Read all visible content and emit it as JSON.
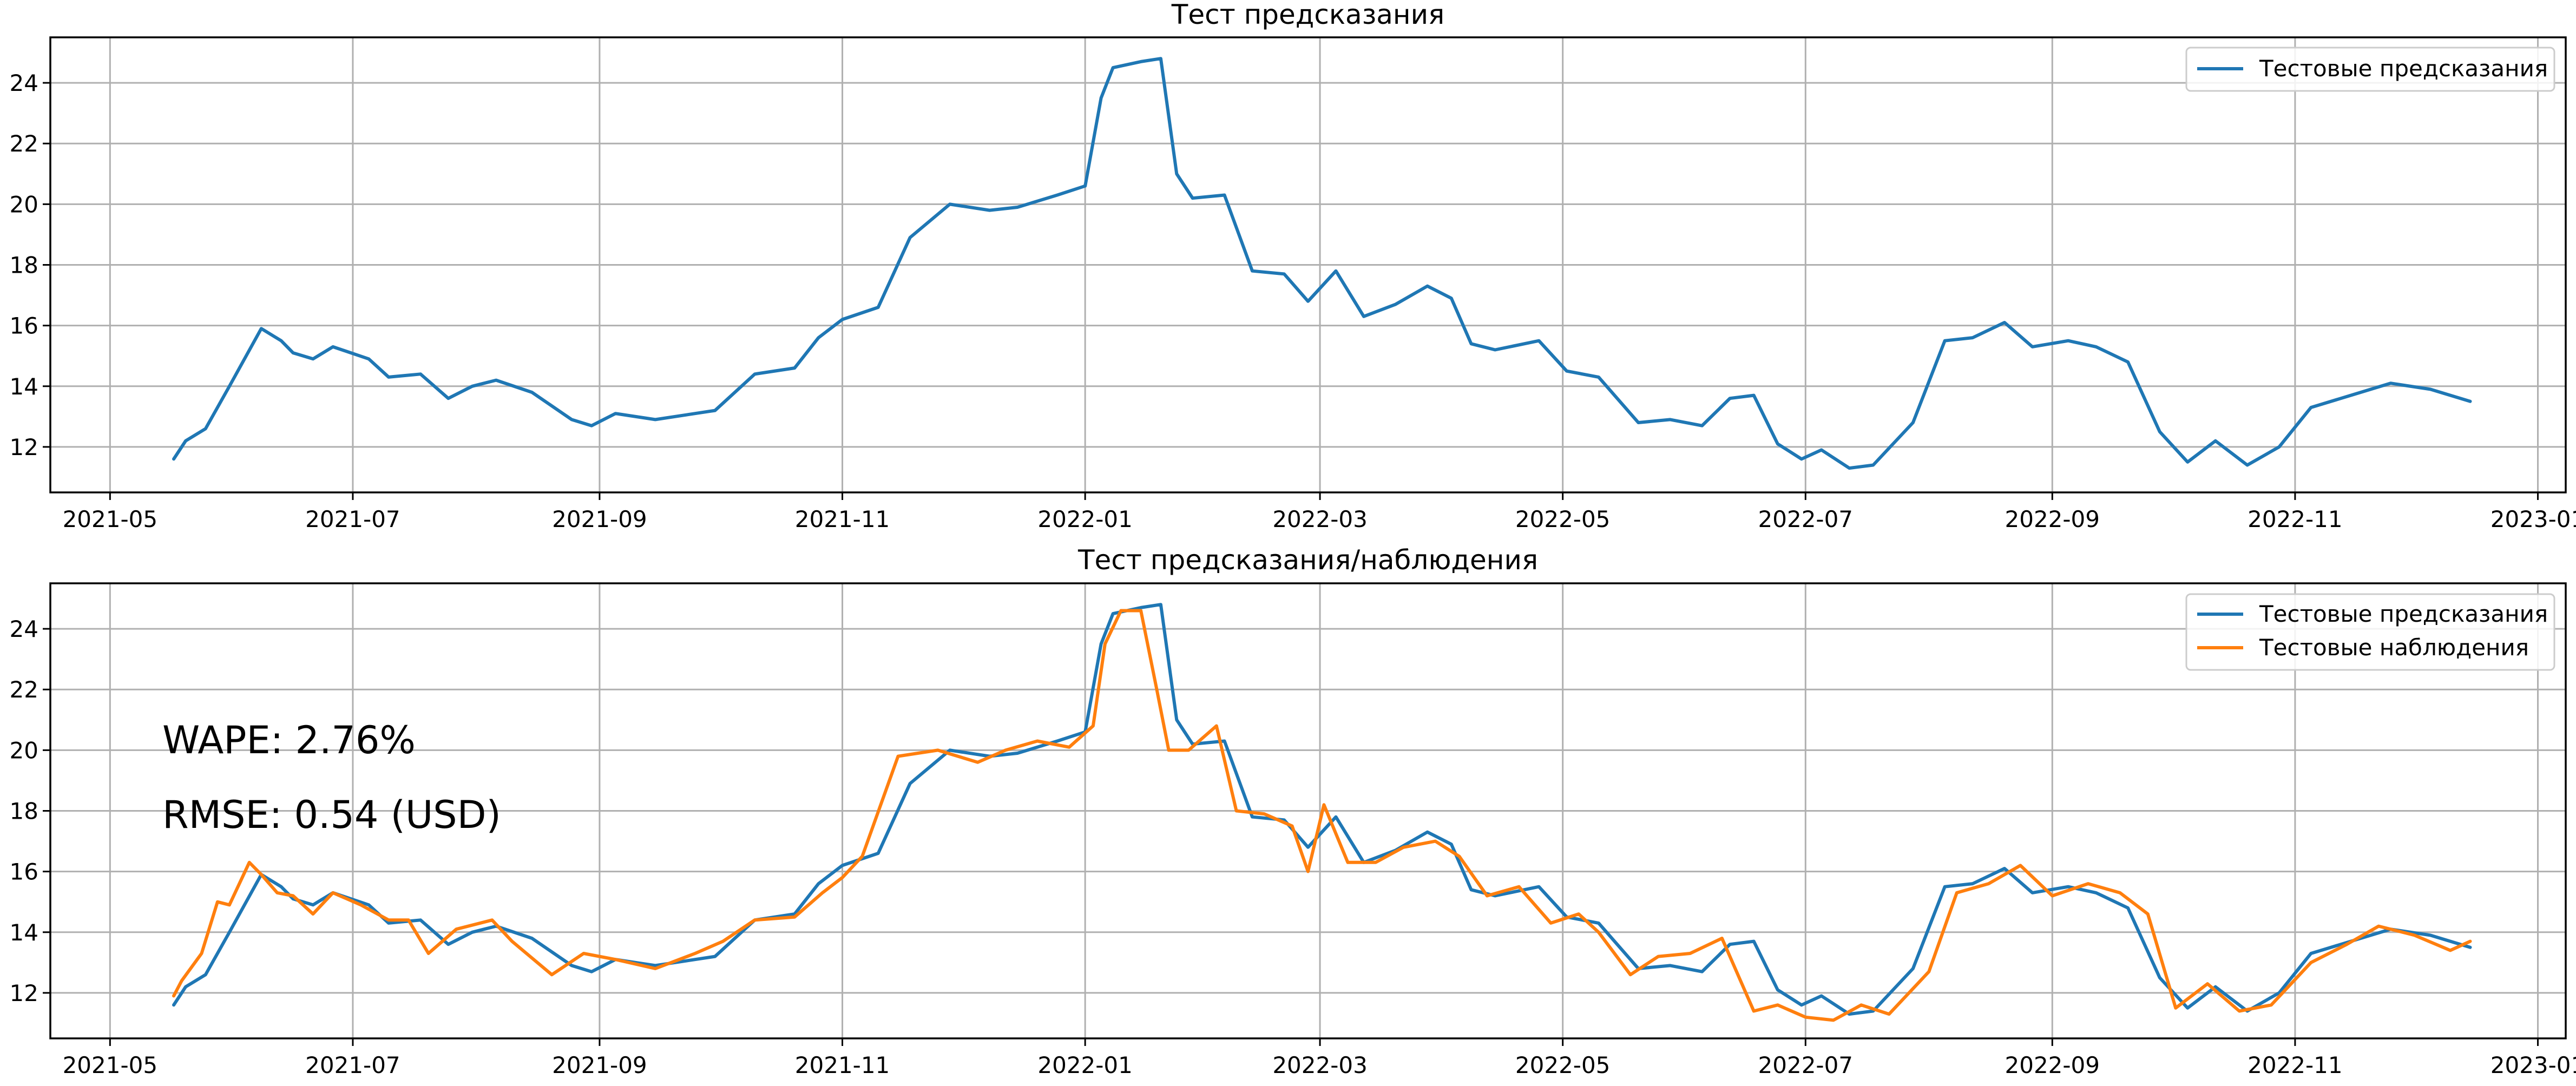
{
  "colors": {
    "predicted": "#1f77b4",
    "observed": "#ff7f0e",
    "grid": "#b0b0b0"
  },
  "chart_data": [
    {
      "type": "line",
      "title": "Тест предсказания",
      "xlabel": "",
      "ylabel": "",
      "x_ticks": [
        "2021-05",
        "2021-07",
        "2021-09",
        "2021-11",
        "2022-01",
        "2022-03",
        "2022-05",
        "2022-07",
        "2022-09",
        "2022-11",
        "2023-01"
      ],
      "xlim": [
        "2021-04-16",
        "2023-01-08"
      ],
      "y_ticks": [
        12,
        14,
        16,
        18,
        20,
        22,
        24
      ],
      "ylim": [
        10.5,
        25.5
      ],
      "grid": true,
      "legend_position": "top-right",
      "series": [
        {
          "name": "Тестовые предсказания",
          "color": "#1f77b4",
          "x": [
            "2021-05-17",
            "2021-05-20",
            "2021-05-25",
            "2021-05-31",
            "2021-06-08",
            "2021-06-13",
            "2021-06-16",
            "2021-06-21",
            "2021-06-26",
            "2021-07-05",
            "2021-07-10",
            "2021-07-18",
            "2021-07-25",
            "2021-07-31",
            "2021-08-06",
            "2021-08-15",
            "2021-08-25",
            "2021-08-30",
            "2021-09-05",
            "2021-09-15",
            "2021-09-25",
            "2021-09-30",
            "2021-10-10",
            "2021-10-20",
            "2021-10-26",
            "2021-11-01",
            "2021-11-10",
            "2021-11-18",
            "2021-11-28",
            "2021-12-08",
            "2021-12-15",
            "2021-12-25",
            "2022-01-01",
            "2022-01-05",
            "2022-01-08",
            "2022-01-15",
            "2022-01-20",
            "2022-01-24",
            "2022-01-28",
            "2022-02-05",
            "2022-02-12",
            "2022-02-20",
            "2022-02-26",
            "2022-03-05",
            "2022-03-12",
            "2022-03-20",
            "2022-03-28",
            "2022-04-03",
            "2022-04-08",
            "2022-04-14",
            "2022-04-25",
            "2022-05-02",
            "2022-05-10",
            "2022-05-20",
            "2022-05-28",
            "2022-06-05",
            "2022-06-12",
            "2022-06-18",
            "2022-06-24",
            "2022-06-30",
            "2022-07-05",
            "2022-07-12",
            "2022-07-18",
            "2022-07-28",
            "2022-08-05",
            "2022-08-12",
            "2022-08-20",
            "2022-08-27",
            "2022-09-05",
            "2022-09-12",
            "2022-09-20",
            "2022-09-28",
            "2022-10-05",
            "2022-10-12",
            "2022-10-20",
            "2022-10-28",
            "2022-11-05",
            "2022-11-15",
            "2022-11-25",
            "2022-12-05",
            "2022-12-15"
          ],
          "values": [
            11.6,
            12.2,
            12.6,
            14.0,
            15.9,
            15.5,
            15.1,
            14.9,
            15.3,
            14.9,
            14.3,
            14.4,
            13.6,
            14.0,
            14.2,
            13.8,
            12.9,
            12.7,
            13.1,
            12.9,
            13.1,
            13.2,
            14.4,
            14.6,
            15.6,
            16.2,
            16.6,
            18.9,
            20.0,
            19.8,
            19.9,
            20.3,
            20.6,
            23.5,
            24.5,
            24.7,
            24.8,
            21.0,
            20.2,
            20.3,
            17.8,
            17.7,
            16.8,
            17.8,
            16.3,
            16.7,
            17.3,
            16.9,
            15.4,
            15.2,
            15.5,
            14.5,
            14.3,
            12.8,
            12.9,
            12.7,
            13.6,
            13.7,
            12.1,
            11.6,
            11.9,
            11.3,
            11.4,
            12.8,
            15.5,
            15.6,
            16.1,
            15.3,
            15.5,
            15.3,
            14.8,
            12.5,
            11.5,
            12.2,
            11.4,
            12.0,
            13.3,
            13.7,
            14.1,
            13.9,
            13.5
          ]
        }
      ]
    },
    {
      "type": "line",
      "title": "Тест предсказания/наблюдения",
      "xlabel": "",
      "ylabel": "",
      "x_ticks": [
        "2021-05",
        "2021-07",
        "2021-09",
        "2021-11",
        "2022-01",
        "2022-03",
        "2022-05",
        "2022-07",
        "2022-09",
        "2022-11",
        "2023-01"
      ],
      "xlim": [
        "2021-04-16",
        "2023-01-08"
      ],
      "y_ticks": [
        12,
        14,
        16,
        18,
        20,
        22,
        24
      ],
      "ylim": [
        10.5,
        25.5
      ],
      "grid": true,
      "legend_position": "top-right",
      "annotations": [
        "WAPE: 2.76%",
        "RMSE: 0.54 (USD)"
      ],
      "series": [
        {
          "name": "Тестовые предсказания",
          "color": "#1f77b4",
          "x": [
            "2021-05-17",
            "2021-05-20",
            "2021-05-25",
            "2021-05-31",
            "2021-06-08",
            "2021-06-13",
            "2021-06-16",
            "2021-06-21",
            "2021-06-26",
            "2021-07-05",
            "2021-07-10",
            "2021-07-18",
            "2021-07-25",
            "2021-07-31",
            "2021-08-06",
            "2021-08-15",
            "2021-08-25",
            "2021-08-30",
            "2021-09-05",
            "2021-09-15",
            "2021-09-25",
            "2021-09-30",
            "2021-10-10",
            "2021-10-20",
            "2021-10-26",
            "2021-11-01",
            "2021-11-10",
            "2021-11-18",
            "2021-11-28",
            "2021-12-08",
            "2021-12-15",
            "2021-12-25",
            "2022-01-01",
            "2022-01-05",
            "2022-01-08",
            "2022-01-15",
            "2022-01-20",
            "2022-01-24",
            "2022-01-28",
            "2022-02-05",
            "2022-02-12",
            "2022-02-20",
            "2022-02-26",
            "2022-03-05",
            "2022-03-12",
            "2022-03-20",
            "2022-03-28",
            "2022-04-03",
            "2022-04-08",
            "2022-04-14",
            "2022-04-25",
            "2022-05-02",
            "2022-05-10",
            "2022-05-20",
            "2022-05-28",
            "2022-06-05",
            "2022-06-12",
            "2022-06-18",
            "2022-06-24",
            "2022-06-30",
            "2022-07-05",
            "2022-07-12",
            "2022-07-18",
            "2022-07-28",
            "2022-08-05",
            "2022-08-12",
            "2022-08-20",
            "2022-08-27",
            "2022-09-05",
            "2022-09-12",
            "2022-09-20",
            "2022-09-28",
            "2022-10-05",
            "2022-10-12",
            "2022-10-20",
            "2022-10-28",
            "2022-11-05",
            "2022-11-15",
            "2022-11-25",
            "2022-12-05",
            "2022-12-15"
          ],
          "values": [
            11.6,
            12.2,
            12.6,
            14.0,
            15.9,
            15.5,
            15.1,
            14.9,
            15.3,
            14.9,
            14.3,
            14.4,
            13.6,
            14.0,
            14.2,
            13.8,
            12.9,
            12.7,
            13.1,
            12.9,
            13.1,
            13.2,
            14.4,
            14.6,
            15.6,
            16.2,
            16.6,
            18.9,
            20.0,
            19.8,
            19.9,
            20.3,
            20.6,
            23.5,
            24.5,
            24.7,
            24.8,
            21.0,
            20.2,
            20.3,
            17.8,
            17.7,
            16.8,
            17.8,
            16.3,
            16.7,
            17.3,
            16.9,
            15.4,
            15.2,
            15.5,
            14.5,
            14.3,
            12.8,
            12.9,
            12.7,
            13.6,
            13.7,
            12.1,
            11.6,
            11.9,
            11.3,
            11.4,
            12.8,
            15.5,
            15.6,
            16.1,
            15.3,
            15.5,
            15.3,
            14.8,
            12.5,
            11.5,
            12.2,
            11.4,
            12.0,
            13.3,
            13.7,
            14.1,
            13.9,
            13.5
          ]
        },
        {
          "name": "Тестовые наблюдения",
          "color": "#ff7f0e",
          "x": [
            "2021-05-17",
            "2021-05-19",
            "2021-05-24",
            "2021-05-28",
            "2021-05-31",
            "2021-06-05",
            "2021-06-08",
            "2021-06-12",
            "2021-06-16",
            "2021-06-21",
            "2021-06-26",
            "2021-07-03",
            "2021-07-10",
            "2021-07-15",
            "2021-07-20",
            "2021-07-27",
            "2021-08-05",
            "2021-08-10",
            "2021-08-20",
            "2021-08-28",
            "2021-09-05",
            "2021-09-15",
            "2021-09-25",
            "2021-10-02",
            "2021-10-10",
            "2021-10-20",
            "2021-10-27",
            "2021-11-01",
            "2021-11-06",
            "2021-11-15",
            "2021-11-25",
            "2021-12-05",
            "2021-12-12",
            "2021-12-20",
            "2021-12-28",
            "2022-01-03",
            "2022-01-06",
            "2022-01-10",
            "2022-01-15",
            "2022-01-19",
            "2022-01-22",
            "2022-01-27",
            "2022-02-03",
            "2022-02-08",
            "2022-02-15",
            "2022-02-22",
            "2022-02-26",
            "2022-03-02",
            "2022-03-08",
            "2022-03-15",
            "2022-03-22",
            "2022-03-30",
            "2022-04-05",
            "2022-04-12",
            "2022-04-20",
            "2022-04-28",
            "2022-05-05",
            "2022-05-10",
            "2022-05-18",
            "2022-05-25",
            "2022-06-02",
            "2022-06-10",
            "2022-06-18",
            "2022-06-24",
            "2022-07-01",
            "2022-07-08",
            "2022-07-15",
            "2022-07-22",
            "2022-08-01",
            "2022-08-08",
            "2022-08-16",
            "2022-08-24",
            "2022-09-01",
            "2022-09-10",
            "2022-09-18",
            "2022-09-25",
            "2022-10-02",
            "2022-10-10",
            "2022-10-18",
            "2022-10-26",
            "2022-11-05",
            "2022-11-14",
            "2022-11-22",
            "2022-12-01",
            "2022-12-10",
            "2022-12-15"
          ],
          "values": [
            11.9,
            12.4,
            13.3,
            15.0,
            14.9,
            16.3,
            15.9,
            15.3,
            15.2,
            14.6,
            15.3,
            14.9,
            14.4,
            14.4,
            13.3,
            14.1,
            14.4,
            13.7,
            12.6,
            13.3,
            13.1,
            12.8,
            13.3,
            13.7,
            14.4,
            14.5,
            15.3,
            15.8,
            16.5,
            19.8,
            20.0,
            19.6,
            20.0,
            20.3,
            20.1,
            20.8,
            23.5,
            24.6,
            24.6,
            22.0,
            20.0,
            20.0,
            20.8,
            18.0,
            17.9,
            17.5,
            16.0,
            18.2,
            16.3,
            16.3,
            16.8,
            17.0,
            16.5,
            15.2,
            15.5,
            14.3,
            14.6,
            14.0,
            12.6,
            13.2,
            13.3,
            13.8,
            11.4,
            11.6,
            11.2,
            11.1,
            11.6,
            11.3,
            12.7,
            15.3,
            15.6,
            16.2,
            15.2,
            15.6,
            15.3,
            14.6,
            11.5,
            12.3,
            11.4,
            11.6,
            13.0,
            13.6,
            14.2,
            13.9,
            13.4,
            13.7
          ]
        }
      ]
    }
  ]
}
